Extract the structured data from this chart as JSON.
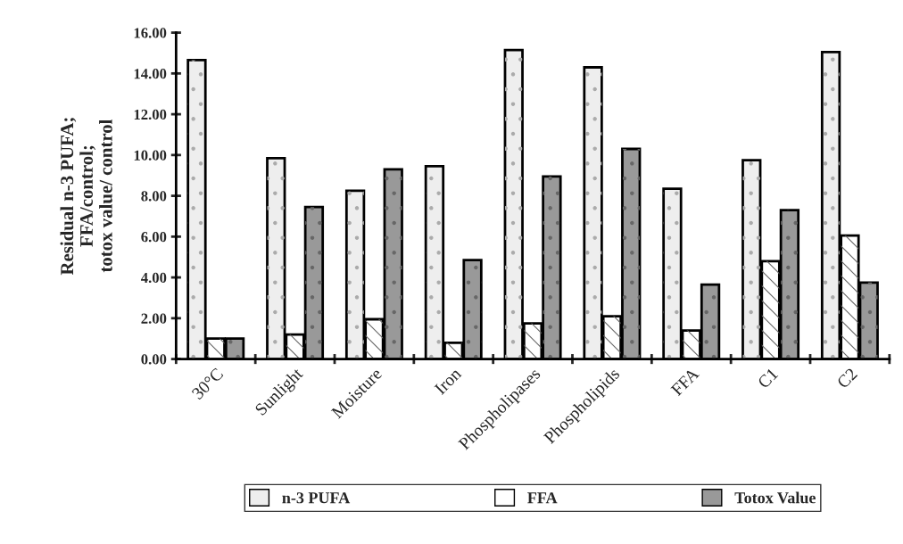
{
  "chart_data": {
    "type": "bar",
    "ylabel": "Residual n-3 PUFA;\nFFA/control;\ntotox value/ control",
    "categories": [
      "30°C",
      "Sunlight",
      "Moisture",
      "Iron",
      "Phospholipases",
      "Phospholipids",
      "FFA",
      "C1",
      "C2"
    ],
    "series": [
      {
        "name": "n-3 PUFA",
        "color": "#eeeeee",
        "values": [
          14.65,
          9.85,
          8.25,
          9.45,
          15.15,
          14.3,
          8.35,
          9.75,
          15.05
        ]
      },
      {
        "name": "FFA",
        "color": "#ffffff",
        "values": [
          1.0,
          1.2,
          1.95,
          0.8,
          1.75,
          2.1,
          1.4,
          4.8,
          6.05
        ]
      },
      {
        "name": "Totox Value",
        "color": "#999999",
        "values": [
          1.0,
          7.45,
          9.3,
          4.85,
          8.95,
          10.3,
          3.65,
          7.3,
          3.75
        ]
      }
    ],
    "ylim": [
      0,
      16
    ],
    "yticks": [
      {
        "value": 0,
        "label": "0.00"
      },
      {
        "value": 2,
        "label": "2.00"
      },
      {
        "value": 4,
        "label": "4.00"
      },
      {
        "value": 6,
        "label": "6.00"
      },
      {
        "value": 8,
        "label": "8.00"
      },
      {
        "value": 10,
        "label": "10.00"
      },
      {
        "value": 12,
        "label": "12.00"
      },
      {
        "value": 14,
        "label": "14.00"
      },
      {
        "value": 16,
        "label": "16.00"
      }
    ],
    "grid": false,
    "legend": "bottom"
  }
}
